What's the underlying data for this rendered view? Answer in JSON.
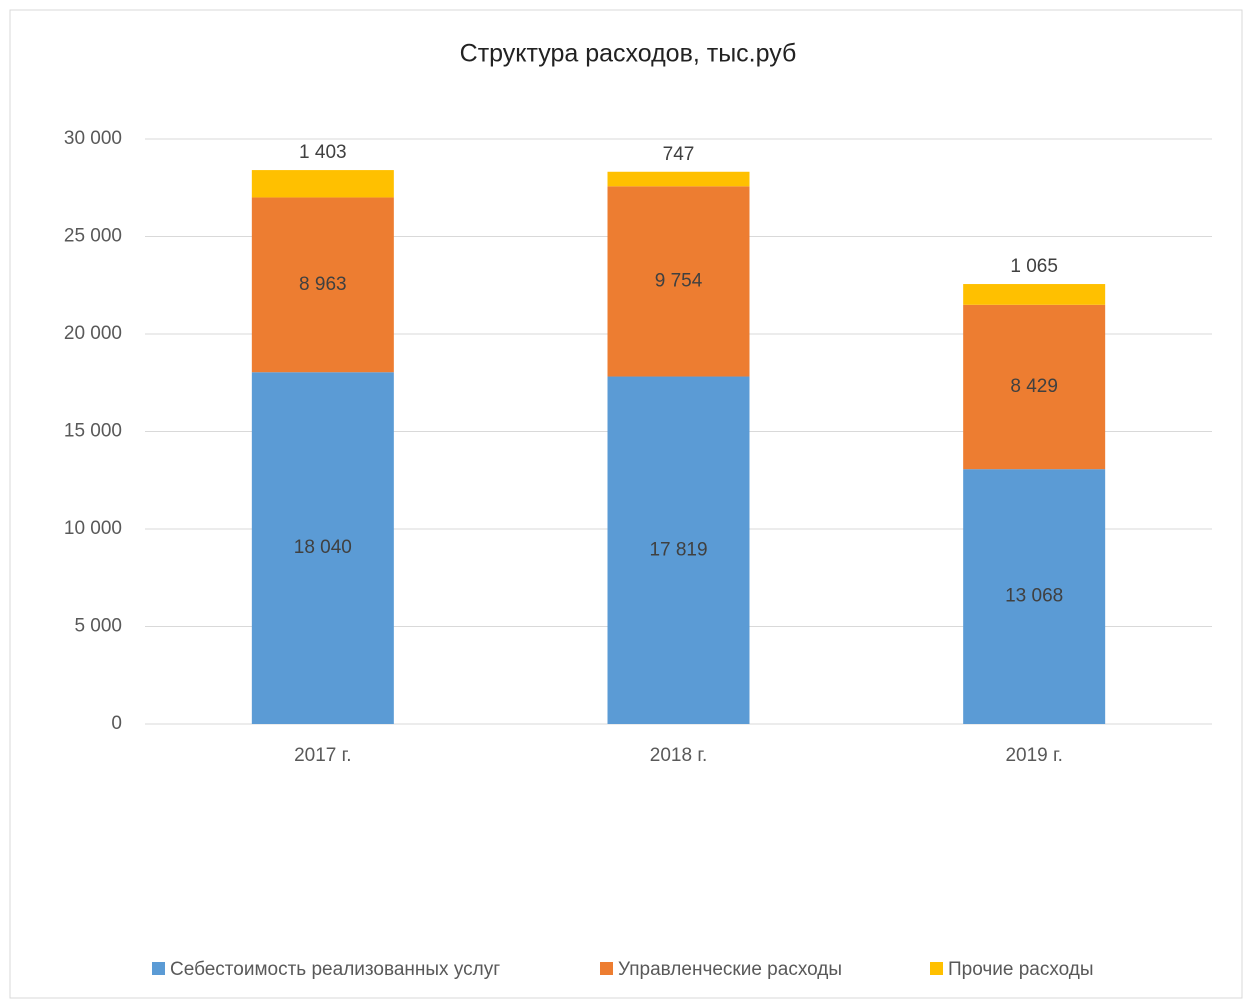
{
  "chart_data": {
    "type": "stacked_bar",
    "title": "Структура расходов, тыс.руб",
    "categories": [
      "2017 г.",
      "2018 г.",
      "2019 г."
    ],
    "series": [
      {
        "name": "Себестоимость реализованных услуг",
        "color": "#5b9bd5",
        "values": [
          18040,
          17819,
          13068
        ],
        "value_labels": [
          "18 040",
          "17 819",
          "13 068"
        ]
      },
      {
        "name": "Управленческие расходы",
        "color": "#ed7d31",
        "values": [
          8963,
          9754,
          8429
        ],
        "value_labels": [
          "8 963",
          "9 754",
          "8 429"
        ]
      },
      {
        "name": "Прочие расходы",
        "color": "#ffc000",
        "values": [
          1403,
          747,
          1065
        ],
        "value_labels": [
          "1 403",
          "747",
          "1 065"
        ]
      }
    ],
    "ylim": [
      0,
      30000
    ],
    "yticks": [
      0,
      {
        "value": 5000,
        "label": "5 000"
      },
      {
        "value": 10000,
        "label": "10 000"
      },
      {
        "value": 15000,
        "label": "15 000"
      },
      {
        "value": 20000,
        "label": "20 000"
      },
      {
        "value": 25000,
        "label": "25 000"
      },
      {
        "value": 30000,
        "label": "30 000"
      }
    ],
    "grid": true,
    "legend": "bottom"
  }
}
